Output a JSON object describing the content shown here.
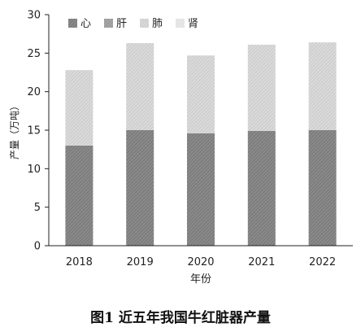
{
  "caption": "图1 近五年我国牛红脏器产量",
  "chart_data": {
    "type": "bar",
    "stacked": true,
    "title": "",
    "xlabel": "年份",
    "ylabel": "产量（万吨）",
    "ylim": [
      0,
      30
    ],
    "yticks": [
      0,
      5,
      10,
      15,
      20,
      25,
      30
    ],
    "categories": [
      "2018",
      "2019",
      "2020",
      "2021",
      "2022"
    ],
    "series": [
      {
        "name": "心",
        "values": [
          13.0,
          15.0,
          14.6,
          14.9,
          15.0
        ],
        "color": "#8a8a8a",
        "pattern": "dense-diagonal"
      },
      {
        "name": "肝",
        "values": [
          0,
          0,
          0,
          0,
          0
        ],
        "color": "#a6a6a6",
        "pattern": "diagonal"
      },
      {
        "name": "肺",
        "values": [
          9.8,
          11.3,
          10.1,
          11.2,
          11.4
        ],
        "color": "#d0d0d0",
        "pattern": "light-diagonal"
      },
      {
        "name": "肾",
        "values": [
          0,
          0,
          0,
          0,
          0
        ],
        "color": "#e2e2e2",
        "pattern": "faint-diagonal"
      }
    ],
    "legend_position": "top",
    "grid": false
  }
}
